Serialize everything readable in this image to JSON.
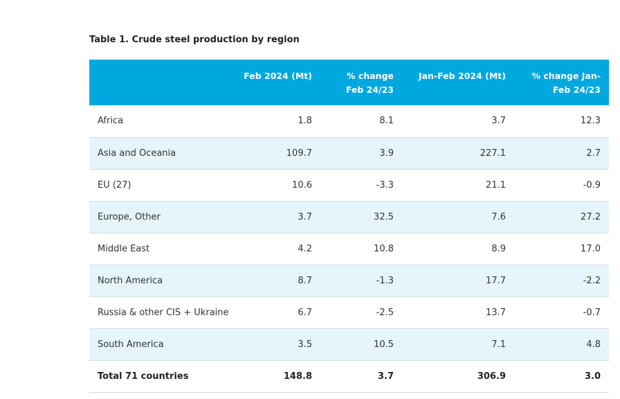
{
  "title": "Table 1. Crude steel production by region",
  "headers": [
    "",
    "Feb 2024 (Mt)",
    "% change Feb 24/23",
    "Jan-Feb 2024 (Mt)",
    "% change Jan-Feb 24/23"
  ],
  "rows": [
    {
      "region": "Africa",
      "feb_mt": "1.8",
      "feb_change": "8.1",
      "janfeb_mt": "3.7",
      "janfeb_change": "12.3"
    },
    {
      "region": "Asia and Oceania",
      "feb_mt": "109.7",
      "feb_change": "3.9",
      "janfeb_mt": "227.1",
      "janfeb_change": "2.7"
    },
    {
      "region": "EU (27)",
      "feb_mt": "10.6",
      "feb_change": "-3.3",
      "janfeb_mt": "21.1",
      "janfeb_change": "-0.9"
    },
    {
      "region": "Europe, Other",
      "feb_mt": "3.7",
      "feb_change": "32.5",
      "janfeb_mt": "7.6",
      "janfeb_change": "27.2"
    },
    {
      "region": "Middle East",
      "feb_mt": "4.2",
      "feb_change": "10.8",
      "janfeb_mt": "8.9",
      "janfeb_change": "17.0"
    },
    {
      "region": "North America",
      "feb_mt": "8.7",
      "feb_change": "-1.3",
      "janfeb_mt": "17.7",
      "janfeb_change": "-2.2"
    },
    {
      "region": "Russia & other CIS + Ukraine",
      "feb_mt": "6.7",
      "feb_change": "-2.5",
      "janfeb_mt": "13.7",
      "janfeb_change": "-0.7"
    },
    {
      "region": "South America",
      "feb_mt": "3.5",
      "feb_change": "10.5",
      "janfeb_mt": "7.1",
      "janfeb_change": "4.8"
    }
  ],
  "total": {
    "region": "Total 71 countries",
    "feb_mt": "148.8",
    "feb_change": "3.7",
    "janfeb_mt": "306.9",
    "janfeb_change": "3.0"
  },
  "colors": {
    "header_bg": "#00a8e0",
    "header_text": "#ffffff",
    "alt_row_bg": "#e5f5fb",
    "row_border": "#d4dde2"
  }
}
